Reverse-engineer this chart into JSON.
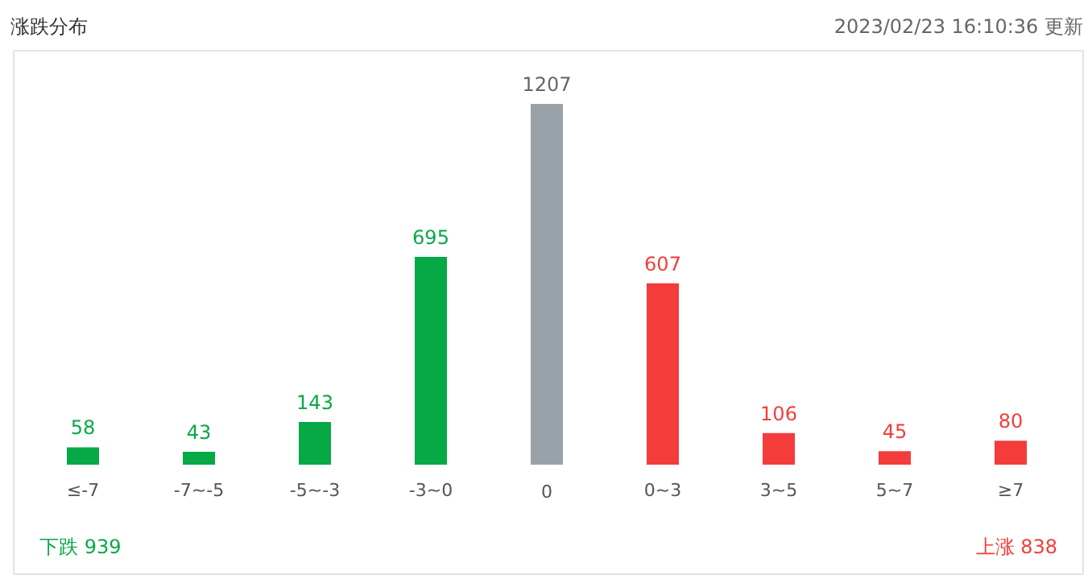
{
  "chart_data": {
    "type": "bar",
    "title": "涨跌分布",
    "categories": [
      "≤-7",
      "-7~-5",
      "-5~-3",
      "-3~0",
      "0",
      "0~3",
      "3~5",
      "5~7",
      "≥7"
    ],
    "values": [
      58,
      43,
      143,
      695,
      1207,
      607,
      106,
      45,
      80
    ],
    "colors": [
      "#07a846",
      "#07a846",
      "#07a846",
      "#07a846",
      "#99a1a9",
      "#f43c3b",
      "#f43c3b",
      "#f43c3b",
      "#f43c3b"
    ],
    "data_labels": true,
    "annotations": [
      "2023/02/23 16:10:36 更新",
      "下跌 939",
      "上涨 838"
    ]
  }
}
